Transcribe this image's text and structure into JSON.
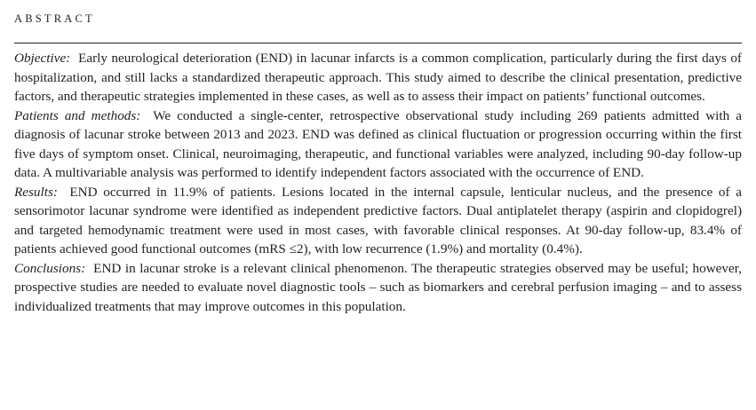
{
  "heading": "ABSTRACT",
  "sections": [
    {
      "label": "Objective:",
      "text": "Early neurological deterioration (END) in lacunar infarcts is a common complication, particularly during the first days of hospitalization, and still lacks a standardized therapeutic approach. This study aimed to describe the clinical presentation, predictive factors, and therapeutic strategies implemented in these cases, as well as to assess their impact on patients’ functional outcomes."
    },
    {
      "label": "Patients and methods:",
      "text": "We conducted a single-center, retrospective observational study including 269 patients admitted with a diagnosis of lacunar stroke between 2013 and 2023. END was defined as clinical fluctuation or progression occurring within the first five days of symptom onset. Clinical, neuroimaging, therapeutic, and functional variables were analyzed, including 90-day follow-up data. A multivariable analysis was performed to identify independent factors associated with the occurrence of END."
    },
    {
      "label": "Results:",
      "text": "END occurred in 11.9% of patients. Lesions located in the internal capsule, lenticular nucleus, and the presence of a sensorimotor lacunar syndrome were identified as independent predictive factors. Dual antiplatelet therapy (aspirin and clopidogrel) and targeted hemodynamic treatment were used in most cases, with favorable clinical responses. At 90-day follow-up, 83.4% of patients achieved good functional outcomes (mRS ≤2), with low recurrence (1.9%) and mortality (0.4%)."
    },
    {
      "label": "Conclusions:",
      "text": "END in lacunar stroke is a relevant clinical phenomenon. The therapeutic strategies observed may be useful; however, prospective studies are needed to evaluate novel diagnostic tools – such as biomarkers and cerebral perfusion imaging – and to assess individualized treatments that may improve outcomes in this population."
    }
  ]
}
